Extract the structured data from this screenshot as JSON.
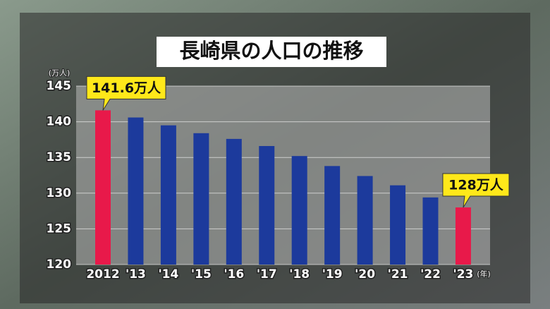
{
  "chart_data": {
    "type": "bar",
    "title": "長崎県の人口の推移",
    "y_unit": "(万人)",
    "x_unit": "(年)",
    "categories": [
      "2012",
      "'13",
      "'14",
      "'15",
      "'16",
      "'17",
      "'18",
      "'19",
      "'20",
      "'21",
      "'22",
      "'23"
    ],
    "values": [
      141.6,
      140.6,
      139.5,
      138.4,
      137.6,
      136.6,
      135.2,
      133.8,
      132.4,
      131.1,
      129.4,
      128
    ],
    "value_labels": [
      "141.6万人",
      null,
      null,
      null,
      null,
      null,
      null,
      null,
      null,
      null,
      null,
      "128万人"
    ],
    "colors": [
      "#e8194a",
      "#1c3a9c",
      "#1c3a9c",
      "#1c3a9c",
      "#1c3a9c",
      "#1c3a9c",
      "#1c3a9c",
      "#1c3a9c",
      "#1c3a9c",
      "#1c3a9c",
      "#1c3a9c",
      "#e8194a"
    ],
    "ylim": [
      120,
      145
    ],
    "yticks": [
      120,
      125,
      130,
      135,
      140,
      145
    ],
    "grid": true
  }
}
